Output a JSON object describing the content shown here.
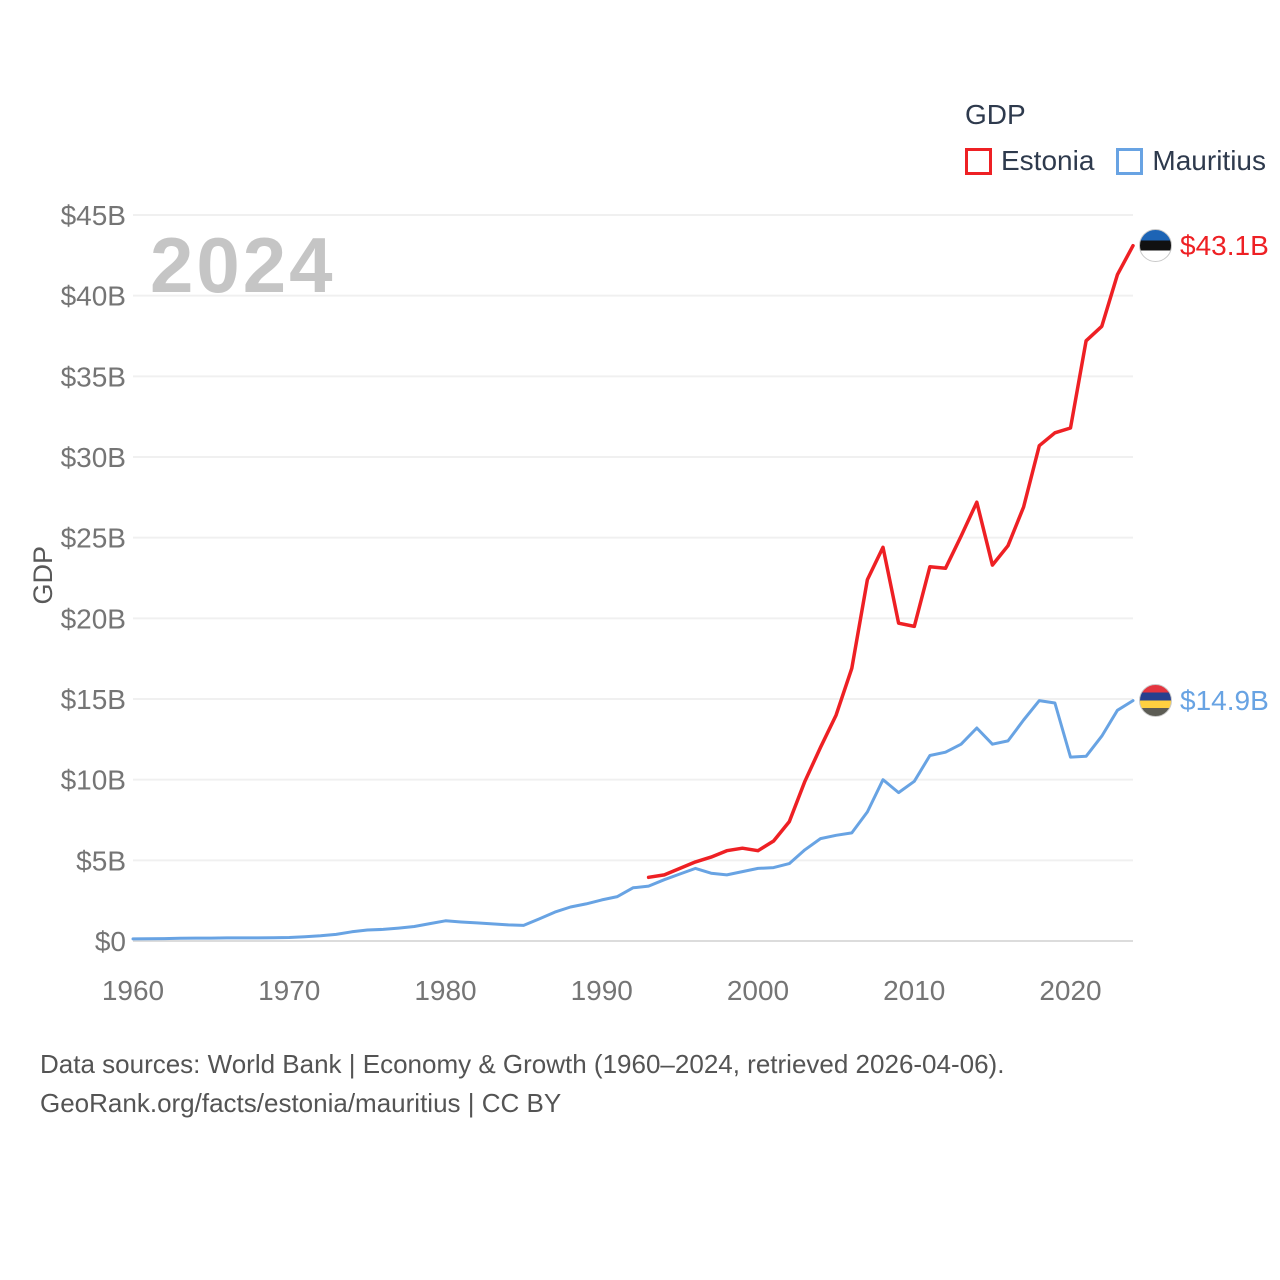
{
  "legend": {
    "title": "GDP",
    "items": [
      {
        "label": "Estonia"
      },
      {
        "label": "Mauritius"
      }
    ]
  },
  "footer": {
    "line1": "Data sources: World Bank | Economy & Growth (1960–2024, retrieved 2026-04-06).",
    "line2": "GeoRank.org/facts/estonia/mauritius | CC BY"
  },
  "chart_data": {
    "type": "line",
    "watermark": "2024",
    "ylabel": "GDP",
    "xlim": [
      1960,
      2024
    ],
    "ylim": [
      0,
      45
    ],
    "grid": true,
    "legend_position": "top-right",
    "xticks": {
      "values": [
        1960,
        1970,
        1980,
        1990,
        2000,
        2010,
        2020
      ],
      "labels": [
        "1960",
        "1970",
        "1980",
        "1990",
        "2000",
        "2010",
        "2020"
      ]
    },
    "yticks": {
      "values": [
        0,
        5,
        10,
        15,
        20,
        25,
        30,
        35,
        40,
        45
      ],
      "labels": [
        "$0",
        "$5B",
        "$10B",
        "$15B",
        "$20B",
        "$25B",
        "$30B",
        "$35B",
        "$40B",
        "$45B"
      ]
    },
    "grid_color": "#f0f0f0",
    "baseline_color": "#dcdcdc",
    "tick_color": "#757575",
    "series": [
      {
        "name": "Estonia",
        "color": "#ee2024",
        "line_width": 3.5,
        "start_year": 1993,
        "end_label": "$43.1B",
        "flag_icon": "estonia-flag-icon",
        "flag_colors": [
          "#1d64b5",
          "#111111",
          "#ffffff"
        ],
        "values": [
          3.95,
          4.1,
          4.5,
          4.9,
          5.2,
          5.6,
          5.75,
          5.6,
          6.2,
          7.4,
          9.9,
          12.0,
          14.0,
          16.9,
          22.4,
          24.4,
          19.7,
          19.5,
          23.2,
          23.1,
          25.1,
          27.2,
          23.3,
          24.5,
          26.9,
          30.7,
          31.5,
          31.8,
          37.2,
          38.1,
          41.3,
          43.1
        ]
      },
      {
        "name": "Mauritius",
        "color": "#68a3e3",
        "line_width": 3,
        "start_year": 1960,
        "end_label": "$14.9B",
        "flag_icon": "mauritius-flag-icon",
        "flag_colors": [
          "#e4353f",
          "#27408e",
          "#ffd040",
          "#5c5c54"
        ],
        "values": [
          0.13,
          0.14,
          0.15,
          0.17,
          0.18,
          0.18,
          0.19,
          0.19,
          0.19,
          0.2,
          0.22,
          0.26,
          0.32,
          0.41,
          0.57,
          0.68,
          0.72,
          0.8,
          0.9,
          1.08,
          1.25,
          1.18,
          1.12,
          1.06,
          1.0,
          0.97,
          1.37,
          1.79,
          2.11,
          2.3,
          2.55,
          2.75,
          3.3,
          3.4,
          3.8,
          4.15,
          4.5,
          4.2,
          4.1,
          4.3,
          4.5,
          4.55,
          4.8,
          5.65,
          6.35,
          6.55,
          6.7,
          8.0,
          10.0,
          9.2,
          9.9,
          11.5,
          11.7,
          12.2,
          13.2,
          12.2,
          12.4,
          13.7,
          14.9,
          14.75,
          11.4,
          11.45,
          12.7,
          14.3,
          14.9
        ]
      }
    ]
  }
}
